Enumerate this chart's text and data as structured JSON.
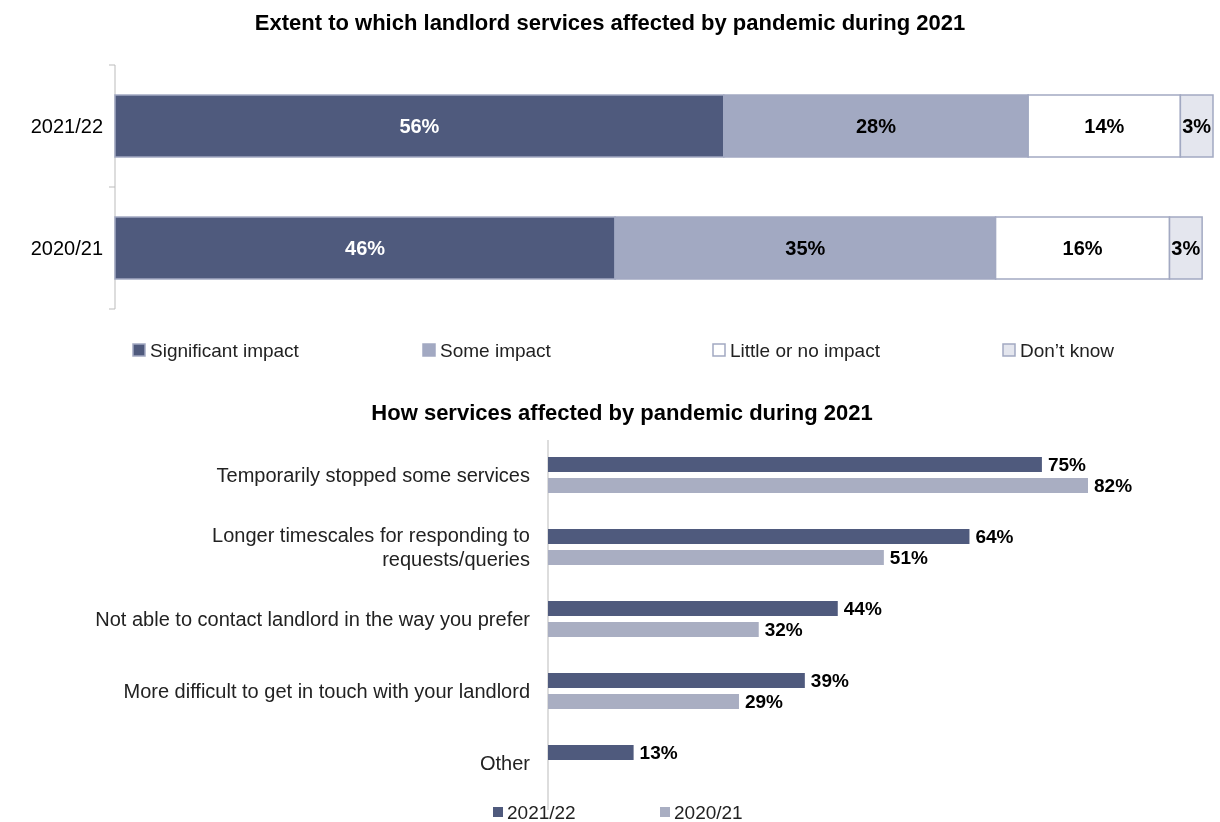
{
  "chart_data": [
    {
      "type": "bar",
      "title": "Extent to which landlord services affected by pandemic during 2021",
      "orientation": "horizontal",
      "stacked": true,
      "categories": [
        "2021/22",
        "2020/21"
      ],
      "legend": "bottom",
      "series": [
        {
          "name": "Significant impact",
          "color": "#4f5a7d",
          "values": [
            56,
            46
          ],
          "value_labels": [
            "56%",
            "46%"
          ]
        },
        {
          "name": "Some impact",
          "color": "#a2a9c2",
          "values": [
            28,
            35
          ],
          "value_labels": [
            "28%",
            "35%"
          ]
        },
        {
          "name": "Little or no impact",
          "color": "#ffffff",
          "values": [
            14,
            16
          ],
          "value_labels": [
            "14%",
            "16%"
          ]
        },
        {
          "name": "Don’t know",
          "color": "#e4e6ee",
          "values": [
            3,
            3
          ],
          "value_labels": [
            "3%",
            "3%"
          ]
        }
      ]
    },
    {
      "type": "bar",
      "title": "How services affected by pandemic during 2021",
      "orientation": "horizontal",
      "categories": [
        "Temporarily stopped some services",
        "Longer timescales for responding to requests/queries",
        "Not able to contact landlord in the way you prefer",
        "More difficult to get in touch with your landlord",
        "Other"
      ],
      "legend": "bottom",
      "series": [
        {
          "name": "2021/22",
          "color": "#4f5a7d",
          "values": [
            75,
            64,
            44,
            39,
            13
          ],
          "value_labels": [
            "75%",
            "64%",
            "44%",
            "39%",
            "13%"
          ]
        },
        {
          "name": "2020/21",
          "color": "#a9aec2",
          "values": [
            82,
            51,
            32,
            29,
            null
          ],
          "value_labels": [
            "82%",
            "51%",
            "32%",
            "29%",
            null
          ]
        }
      ]
    }
  ]
}
